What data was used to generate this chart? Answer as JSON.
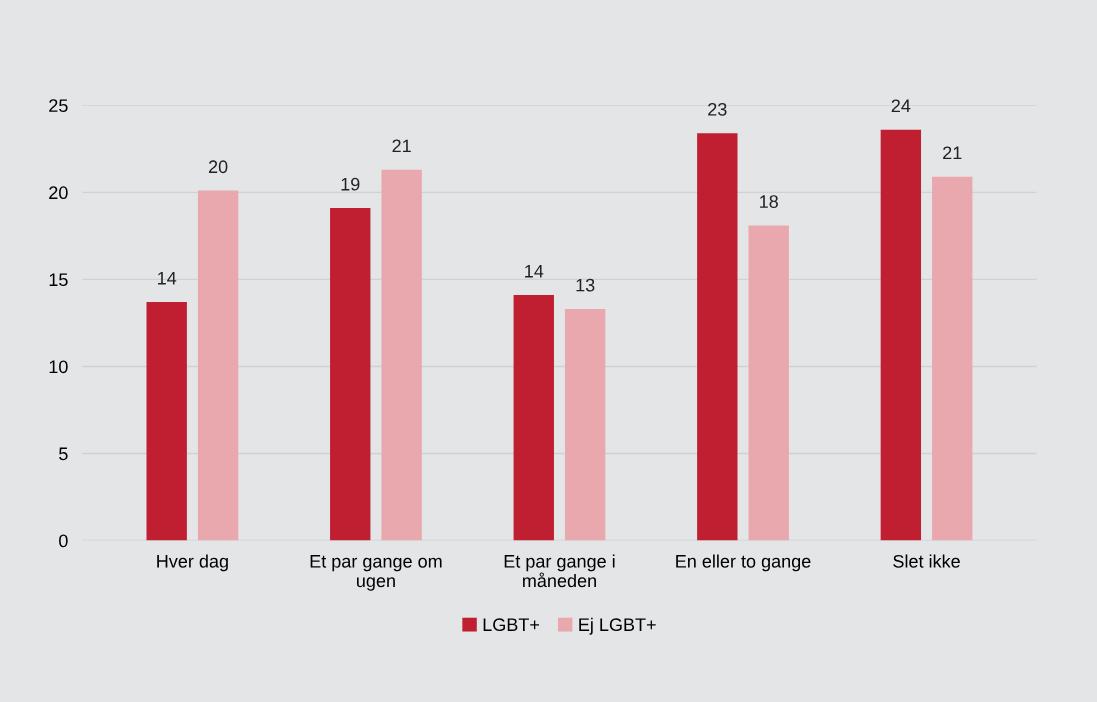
{
  "chart_data": {
    "type": "bar",
    "categories": [
      "Hver dag",
      "Et par gange om\nugen",
      "Et par gange i\nmåneden",
      "En eller to gange",
      "Slet ikke"
    ],
    "series": [
      {
        "name": "LGBT+",
        "color": "#c01f31",
        "values": [
          13.7,
          19.1,
          14.1,
          23.4,
          23.6
        ],
        "value_labels": [
          "14",
          "19",
          "14",
          "23",
          "24"
        ]
      },
      {
        "name": "Ej LGBT+",
        "color": "#e8a8ad",
        "values": [
          20.1,
          21.3,
          13.3,
          18.1,
          20.9
        ],
        "value_labels": [
          "20",
          "21",
          "13",
          "18",
          "21"
        ]
      }
    ],
    "ylim": [
      0,
      25
    ],
    "yticks": [
      0,
      5,
      10,
      15,
      20,
      25
    ],
    "grid": "y",
    "legend": "bottom"
  }
}
